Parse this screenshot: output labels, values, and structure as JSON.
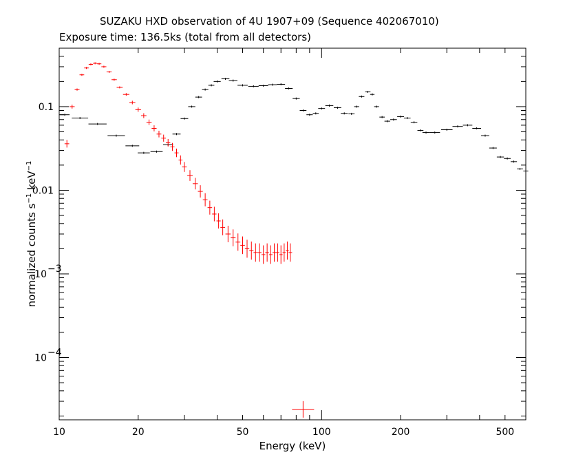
{
  "chart_data": {
    "type": "scatter",
    "title": "SUZAKU HXD observation of 4U 1907+09 (Sequence 402067010)",
    "subtitle": "Exposure time: 136.5ks (total from all detectors)",
    "xlabel": "Energy (keV)",
    "ylabel": {
      "base": "normalized counts s",
      "exp1": "−1",
      "unit": " keV",
      "exp2": "−1"
    },
    "x_scale": "log",
    "y_scale": "log",
    "xlim": [
      10,
      600
    ],
    "ylim": [
      1.8e-05,
      0.5
    ],
    "x_ticks": [
      {
        "value": 10,
        "label": "10"
      },
      {
        "value": 20,
        "label": "20"
      },
      {
        "value": 50,
        "label": "50"
      },
      {
        "value": 100,
        "label": "100"
      },
      {
        "value": 200,
        "label": "200"
      },
      {
        "value": 500,
        "label": "500"
      }
    ],
    "y_ticks": [
      {
        "value": 0.1,
        "label": "0.1"
      },
      {
        "value": 0.01,
        "label": "0.01"
      },
      {
        "value": 0.001,
        "label": "10",
        "exp": "−3"
      },
      {
        "value": 0.0001,
        "label": "10",
        "exp": "−4"
      }
    ],
    "series": [
      {
        "color": "#000000",
        "points": [
          [
            10.5,
            0.08
          ],
          [
            12.0,
            0.073
          ],
          [
            14.0,
            0.062
          ],
          [
            16.5,
            0.045
          ],
          [
            19.0,
            0.034
          ],
          [
            21.0,
            0.028
          ],
          [
            23.5,
            0.029
          ],
          [
            26.0,
            0.035
          ],
          [
            28.0,
            0.047
          ],
          [
            30.0,
            0.072
          ],
          [
            32.0,
            0.1
          ],
          [
            34.0,
            0.13
          ],
          [
            36.0,
            0.16
          ],
          [
            38.0,
            0.18
          ],
          [
            40.0,
            0.2
          ],
          [
            43.0,
            0.215
          ],
          [
            46.0,
            0.205
          ],
          [
            50.0,
            0.18
          ],
          [
            55.0,
            0.175
          ],
          [
            60.0,
            0.178
          ],
          [
            65.0,
            0.183
          ],
          [
            70.0,
            0.185
          ],
          [
            75.0,
            0.165
          ],
          [
            80.0,
            0.125
          ],
          [
            85.0,
            0.09
          ],
          [
            90.0,
            0.08
          ],
          [
            95.0,
            0.083
          ],
          [
            100.0,
            0.095
          ],
          [
            107.0,
            0.103
          ],
          [
            115.0,
            0.097
          ],
          [
            122.0,
            0.083
          ],
          [
            130.0,
            0.082
          ],
          [
            136.0,
            0.1
          ],
          [
            142.0,
            0.132
          ],
          [
            150.0,
            0.15
          ],
          [
            156.0,
            0.14
          ],
          [
            162.0,
            0.1
          ],
          [
            170.0,
            0.075
          ],
          [
            178.0,
            0.067
          ],
          [
            188.0,
            0.07
          ],
          [
            200.0,
            0.076
          ],
          [
            212.0,
            0.073
          ],
          [
            225.0,
            0.065
          ],
          [
            238.0,
            0.052
          ],
          [
            250.0,
            0.049
          ],
          [
            270.0,
            0.049
          ],
          [
            300.0,
            0.053
          ],
          [
            330.0,
            0.058
          ],
          [
            360.0,
            0.06
          ],
          [
            390.0,
            0.055
          ],
          [
            420.0,
            0.045
          ],
          [
            450.0,
            0.032
          ],
          [
            480.0,
            0.025
          ],
          [
            510.0,
            0.024
          ],
          [
            540.0,
            0.022
          ],
          [
            570.0,
            0.018
          ],
          [
            600.0,
            0.017
          ]
        ]
      },
      {
        "color": "#ff0000",
        "points": [
          [
            10.7,
            0.036
          ],
          [
            11.2,
            0.1
          ],
          [
            11.7,
            0.16
          ],
          [
            12.2,
            0.24
          ],
          [
            12.7,
            0.29
          ],
          [
            13.2,
            0.32
          ],
          [
            13.7,
            0.33
          ],
          [
            14.2,
            0.325
          ],
          [
            14.8,
            0.3
          ],
          [
            15.5,
            0.26
          ],
          [
            16.2,
            0.21
          ],
          [
            17.0,
            0.17
          ],
          [
            18.0,
            0.14
          ],
          [
            19.0,
            0.112
          ],
          [
            20.0,
            0.092
          ],
          [
            21.0,
            0.078
          ],
          [
            22.0,
            0.065
          ],
          [
            23.0,
            0.055
          ],
          [
            24.0,
            0.047
          ],
          [
            25.0,
            0.042
          ],
          [
            26.0,
            0.037
          ],
          [
            27.0,
            0.033
          ],
          [
            28.0,
            0.028
          ],
          [
            29.0,
            0.023
          ],
          [
            30.0,
            0.019
          ],
          [
            31.5,
            0.015
          ],
          [
            33.0,
            0.012
          ],
          [
            34.5,
            0.0097
          ],
          [
            36.0,
            0.0077
          ],
          [
            37.5,
            0.0062
          ],
          [
            39.0,
            0.0052
          ],
          [
            40.5,
            0.0043
          ],
          [
            42.0,
            0.0036
          ],
          [
            44.0,
            0.003
          ],
          [
            46.0,
            0.0027
          ],
          [
            48.0,
            0.0024
          ],
          [
            50.0,
            0.0022
          ],
          [
            52.0,
            0.002
          ],
          [
            54.0,
            0.0019
          ],
          [
            56.0,
            0.0018
          ],
          [
            58.0,
            0.0018
          ],
          [
            60.0,
            0.0017
          ],
          [
            62.0,
            0.0018
          ],
          [
            64.0,
            0.0017
          ],
          [
            66.0,
            0.0018
          ],
          [
            68.0,
            0.0018
          ],
          [
            70.0,
            0.0017
          ],
          [
            72.0,
            0.0018
          ],
          [
            74.0,
            0.0019
          ],
          [
            76.0,
            0.0018
          ]
        ],
        "outlier": [
          85.0,
          2.4e-05
        ]
      }
    ]
  }
}
